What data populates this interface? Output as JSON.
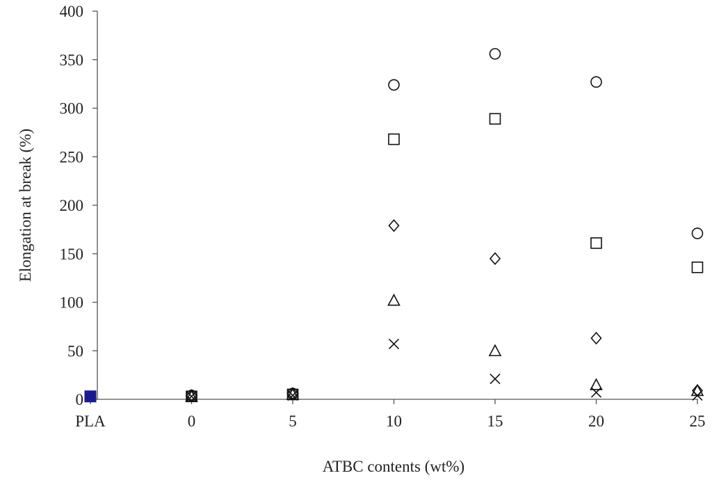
{
  "chart_data": {
    "type": "scatter",
    "title": "",
    "xlabel": "ATBC contents (wt%)",
    "ylabel": "Elongation at break (%)",
    "categories": [
      "PLA",
      "0",
      "5",
      "10",
      "15",
      "20",
      "25"
    ],
    "ylim": [
      0,
      400
    ],
    "yticks": [
      0,
      50,
      100,
      150,
      200,
      250,
      300,
      350,
      400
    ],
    "grid": false,
    "legend": "none",
    "series": [
      {
        "marker": "filled-square",
        "color": "#1a1a8c",
        "values": [
          3,
          null,
          null,
          null,
          null,
          null,
          null
        ]
      },
      {
        "marker": "circle",
        "color": "#111111",
        "values": [
          null,
          4,
          6,
          324,
          356,
          327,
          171
        ]
      },
      {
        "marker": "square",
        "color": "#111111",
        "values": [
          null,
          3,
          5,
          268,
          289,
          161,
          136
        ]
      },
      {
        "marker": "diamond",
        "color": "#111111",
        "values": [
          null,
          4,
          6,
          179,
          145,
          63,
          9
        ]
      },
      {
        "marker": "triangle",
        "color": "#111111",
        "values": [
          null,
          3,
          5,
          102,
          50,
          15,
          9
        ]
      },
      {
        "marker": "x",
        "color": "#111111",
        "values": [
          null,
          3,
          4,
          57,
          21,
          7,
          4
        ]
      }
    ]
  }
}
